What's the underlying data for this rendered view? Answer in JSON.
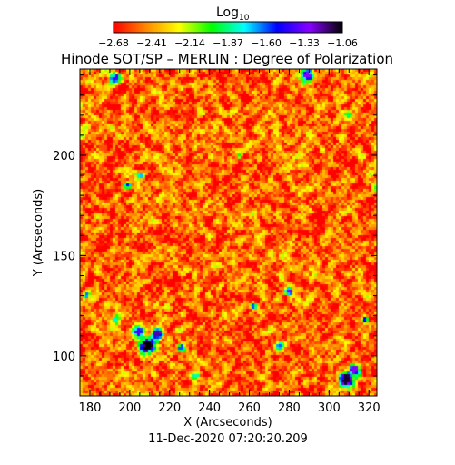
{
  "chart_data": {
    "type": "heatmap",
    "title": "Hinode SOT/SP – MERLIN : Degree of Polarization",
    "colorbar": {
      "label": "Log",
      "label_sub": "10",
      "ticks": [
        "-2.68",
        "-2.41",
        "-2.14",
        "-1.87",
        "-1.60",
        "-1.33",
        "-1.06"
      ],
      "range": [
        -2.68,
        -1.06
      ],
      "position": "top",
      "colors": [
        "#ff0000",
        "#ff8800",
        "#ffff00",
        "#00ff00",
        "#00ffff",
        "#0000ff",
        "#8800ff",
        "#000000"
      ]
    },
    "xlabel": "X (Arcseconds)",
    "ylabel": "Y (Arcseconds)",
    "xlim": [
      175,
      324
    ],
    "ylim": [
      80,
      243
    ],
    "xticks": [
      180,
      200,
      220,
      240,
      260,
      280,
      300,
      320
    ],
    "yticks": [
      100,
      150,
      200
    ],
    "grid": false,
    "timestamp": "11-Dec-2020 07:20:20.209",
    "field": {
      "background_mean": -2.5,
      "patches": [
        {
          "x": 209,
          "y": 105,
          "r": 3.5,
          "value": -1.0
        },
        {
          "x": 214,
          "y": 111,
          "r": 2.5,
          "value": -1.2
        },
        {
          "x": 204,
          "y": 112,
          "r": 2.5,
          "value": -1.4
        },
        {
          "x": 226,
          "y": 104,
          "r": 2.0,
          "value": -1.6
        },
        {
          "x": 193,
          "y": 118,
          "r": 2.0,
          "value": -1.8
        },
        {
          "x": 309,
          "y": 88,
          "r": 3.5,
          "value": -1.1
        },
        {
          "x": 313,
          "y": 93,
          "r": 2.5,
          "value": -1.3
        },
        {
          "x": 280,
          "y": 132,
          "r": 2.0,
          "value": -1.3
        },
        {
          "x": 275,
          "y": 105,
          "r": 2.0,
          "value": -1.6
        },
        {
          "x": 193,
          "y": 238,
          "r": 2.5,
          "value": -1.4
        },
        {
          "x": 289,
          "y": 240,
          "r": 3.0,
          "value": -1.3
        },
        {
          "x": 205,
          "y": 190,
          "r": 2.0,
          "value": -1.7
        },
        {
          "x": 199,
          "y": 185,
          "r": 1.5,
          "value": -1.5
        },
        {
          "x": 310,
          "y": 220,
          "r": 2.0,
          "value": -1.9
        },
        {
          "x": 262,
          "y": 125,
          "r": 1.5,
          "value": -1.6
        },
        {
          "x": 233,
          "y": 90,
          "r": 2.0,
          "value": -1.8
        },
        {
          "x": 178,
          "y": 130,
          "r": 1.5,
          "value": -1.6
        },
        {
          "x": 318,
          "y": 118,
          "r": 1.5,
          "value": -1.5
        },
        {
          "x": 255,
          "y": 200,
          "r": 1.5,
          "value": -2.0
        }
      ]
    }
  }
}
